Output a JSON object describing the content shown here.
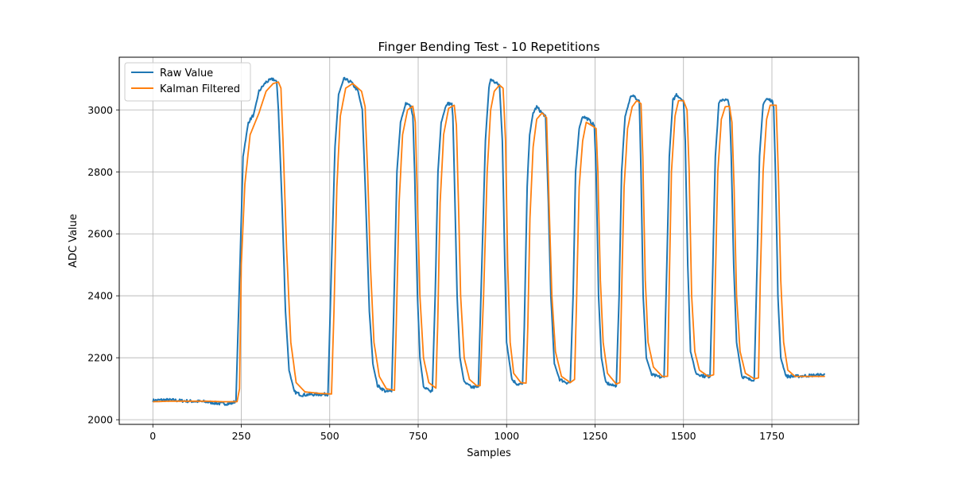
{
  "chart_data": {
    "type": "line",
    "title": "Finger Bending Test - 10 Repetitions",
    "xlabel": "Samples",
    "ylabel": "ADC Value",
    "xlim": [
      -95,
      1995
    ],
    "ylim": [
      1985,
      3170
    ],
    "xticks": [
      0,
      250,
      500,
      750,
      1000,
      1250,
      1500,
      1750
    ],
    "yticks": [
      2000,
      2200,
      2400,
      2600,
      2800,
      3000
    ],
    "grid": true,
    "legend_position": "top-left",
    "series": [
      {
        "name": "Raw Value",
        "color": "#1f77b4",
        "kind": "raw",
        "noise": 5,
        "points": [
          [
            0,
            2062
          ],
          [
            30,
            2064
          ],
          [
            60,
            2063
          ],
          [
            100,
            2060
          ],
          [
            150,
            2058
          ],
          [
            190,
            2052
          ],
          [
            220,
            2052
          ],
          [
            235,
            2060
          ],
          [
            245,
            2450
          ],
          [
            255,
            2850
          ],
          [
            270,
            2960
          ],
          [
            285,
            2985
          ],
          [
            300,
            3060
          ],
          [
            320,
            3090
          ],
          [
            340,
            3100
          ],
          [
            350,
            3090
          ],
          [
            355,
            3000
          ],
          [
            365,
            2700
          ],
          [
            375,
            2350
          ],
          [
            385,
            2160
          ],
          [
            400,
            2090
          ],
          [
            420,
            2080
          ],
          [
            460,
            2082
          ],
          [
            495,
            2082
          ],
          [
            505,
            2500
          ],
          [
            515,
            2880
          ],
          [
            525,
            3050
          ],
          [
            540,
            3100
          ],
          [
            560,
            3090
          ],
          [
            580,
            3060
          ],
          [
            592,
            3000
          ],
          [
            602,
            2700
          ],
          [
            612,
            2350
          ],
          [
            622,
            2180
          ],
          [
            635,
            2110
          ],
          [
            660,
            2090
          ],
          [
            675,
            2092
          ],
          [
            682,
            2400
          ],
          [
            690,
            2800
          ],
          [
            700,
            2960
          ],
          [
            715,
            3020
          ],
          [
            730,
            3010
          ],
          [
            735,
            2980
          ],
          [
            740,
            2800
          ],
          [
            748,
            2400
          ],
          [
            755,
            2200
          ],
          [
            765,
            2110
          ],
          [
            785,
            2090
          ],
          [
            790,
            2092
          ],
          [
            798,
            2400
          ],
          [
            806,
            2800
          ],
          [
            815,
            2960
          ],
          [
            830,
            3020
          ],
          [
            845,
            3020
          ],
          [
            848,
            2980
          ],
          [
            852,
            2800
          ],
          [
            860,
            2400
          ],
          [
            868,
            2200
          ],
          [
            880,
            2120
          ],
          [
            900,
            2105
          ],
          [
            920,
            2105
          ],
          [
            930,
            2500
          ],
          [
            940,
            2900
          ],
          [
            950,
            3070
          ],
          [
            955,
            3100
          ],
          [
            965,
            3090
          ],
          [
            980,
            3080
          ],
          [
            988,
            2900
          ],
          [
            995,
            2500
          ],
          [
            1000,
            2250
          ],
          [
            1015,
            2130
          ],
          [
            1030,
            2115
          ],
          [
            1045,
            2115
          ],
          [
            1050,
            2300
          ],
          [
            1058,
            2750
          ],
          [
            1065,
            2920
          ],
          [
            1075,
            2990
          ],
          [
            1085,
            3010
          ],
          [
            1100,
            2990
          ],
          [
            1110,
            2980
          ],
          [
            1118,
            2700
          ],
          [
            1125,
            2400
          ],
          [
            1135,
            2180
          ],
          [
            1150,
            2130
          ],
          [
            1170,
            2120
          ],
          [
            1180,
            2120
          ],
          [
            1188,
            2400
          ],
          [
            1195,
            2800
          ],
          [
            1205,
            2940
          ],
          [
            1215,
            2980
          ],
          [
            1230,
            2970
          ],
          [
            1248,
            2950
          ],
          [
            1253,
            2800
          ],
          [
            1260,
            2400
          ],
          [
            1268,
            2200
          ],
          [
            1280,
            2120
          ],
          [
            1300,
            2110
          ],
          [
            1310,
            2110
          ],
          [
            1318,
            2400
          ],
          [
            1325,
            2800
          ],
          [
            1335,
            2980
          ],
          [
            1350,
            3040
          ],
          [
            1360,
            3045
          ],
          [
            1375,
            3030
          ],
          [
            1380,
            2800
          ],
          [
            1386,
            2400
          ],
          [
            1395,
            2200
          ],
          [
            1410,
            2145
          ],
          [
            1435,
            2137
          ],
          [
            1445,
            2137
          ],
          [
            1453,
            2500
          ],
          [
            1460,
            2850
          ],
          [
            1470,
            3030
          ],
          [
            1480,
            3050
          ],
          [
            1490,
            3040
          ],
          [
            1500,
            3030
          ],
          [
            1505,
            2900
          ],
          [
            1512,
            2500
          ],
          [
            1520,
            2220
          ],
          [
            1535,
            2150
          ],
          [
            1560,
            2140
          ],
          [
            1575,
            2140
          ],
          [
            1583,
            2500
          ],
          [
            1590,
            2850
          ],
          [
            1600,
            3020
          ],
          [
            1610,
            3035
          ],
          [
            1625,
            3030
          ],
          [
            1630,
            3010
          ],
          [
            1635,
            2850
          ],
          [
            1642,
            2500
          ],
          [
            1650,
            2250
          ],
          [
            1665,
            2140
          ],
          [
            1685,
            2130
          ],
          [
            1700,
            2130
          ],
          [
            1708,
            2500
          ],
          [
            1715,
            2850
          ],
          [
            1725,
            3020
          ],
          [
            1735,
            3035
          ],
          [
            1750,
            3030
          ],
          [
            1755,
            3010
          ],
          [
            1760,
            2800
          ],
          [
            1767,
            2400
          ],
          [
            1775,
            2200
          ],
          [
            1790,
            2140
          ],
          [
            1820,
            2140
          ],
          [
            1860,
            2143
          ],
          [
            1900,
            2145
          ]
        ]
      },
      {
        "name": "Kalman Filtered",
        "color": "#ff7f0e",
        "kind": "filtered",
        "noise": 0,
        "points": [
          [
            0,
            2058
          ],
          [
            50,
            2060
          ],
          [
            100,
            2060
          ],
          [
            150,
            2060
          ],
          [
            200,
            2058
          ],
          [
            238,
            2058
          ],
          [
            245,
            2100
          ],
          [
            250,
            2500
          ],
          [
            260,
            2760
          ],
          [
            275,
            2920
          ],
          [
            300,
            2990
          ],
          [
            320,
            3060
          ],
          [
            340,
            3085
          ],
          [
            355,
            3090
          ],
          [
            362,
            3070
          ],
          [
            368,
            2900
          ],
          [
            378,
            2550
          ],
          [
            390,
            2250
          ],
          [
            405,
            2120
          ],
          [
            430,
            2090
          ],
          [
            470,
            2085
          ],
          [
            505,
            2083
          ],
          [
            512,
            2350
          ],
          [
            520,
            2750
          ],
          [
            530,
            2980
          ],
          [
            545,
            3070
          ],
          [
            565,
            3085
          ],
          [
            590,
            3060
          ],
          [
            600,
            3010
          ],
          [
            607,
            2800
          ],
          [
            615,
            2500
          ],
          [
            625,
            2250
          ],
          [
            640,
            2140
          ],
          [
            660,
            2100
          ],
          [
            683,
            2095
          ],
          [
            688,
            2300
          ],
          [
            696,
            2700
          ],
          [
            706,
            2920
          ],
          [
            720,
            3000
          ],
          [
            735,
            3012
          ],
          [
            742,
            2960
          ],
          [
            748,
            2700
          ],
          [
            755,
            2400
          ],
          [
            765,
            2200
          ],
          [
            780,
            2120
          ],
          [
            800,
            2102
          ],
          [
            805,
            2300
          ],
          [
            812,
            2700
          ],
          [
            822,
            2920
          ],
          [
            836,
            3005
          ],
          [
            852,
            3015
          ],
          [
            858,
            2950
          ],
          [
            864,
            2700
          ],
          [
            870,
            2400
          ],
          [
            880,
            2200
          ],
          [
            895,
            2130
          ],
          [
            915,
            2110
          ],
          [
            925,
            2110
          ],
          [
            935,
            2400
          ],
          [
            945,
            2800
          ],
          [
            955,
            3000
          ],
          [
            965,
            3060
          ],
          [
            980,
            3080
          ],
          [
            990,
            3070
          ],
          [
            997,
            2900
          ],
          [
            1003,
            2500
          ],
          [
            1010,
            2250
          ],
          [
            1020,
            2150
          ],
          [
            1040,
            2120
          ],
          [
            1055,
            2118
          ],
          [
            1060,
            2300
          ],
          [
            1066,
            2650
          ],
          [
            1075,
            2880
          ],
          [
            1085,
            2970
          ],
          [
            1100,
            2990
          ],
          [
            1113,
            2975
          ],
          [
            1120,
            2700
          ],
          [
            1128,
            2400
          ],
          [
            1138,
            2220
          ],
          [
            1155,
            2140
          ],
          [
            1180,
            2120
          ],
          [
            1192,
            2130
          ],
          [
            1198,
            2400
          ],
          [
            1205,
            2750
          ],
          [
            1215,
            2900
          ],
          [
            1225,
            2960
          ],
          [
            1240,
            2950
          ],
          [
            1253,
            2940
          ],
          [
            1258,
            2800
          ],
          [
            1265,
            2450
          ],
          [
            1273,
            2250
          ],
          [
            1285,
            2150
          ],
          [
            1310,
            2115
          ],
          [
            1320,
            2120
          ],
          [
            1325,
            2400
          ],
          [
            1332,
            2750
          ],
          [
            1342,
            2940
          ],
          [
            1355,
            3010
          ],
          [
            1368,
            3030
          ],
          [
            1380,
            3020
          ],
          [
            1385,
            2850
          ],
          [
            1392,
            2450
          ],
          [
            1400,
            2250
          ],
          [
            1415,
            2170
          ],
          [
            1440,
            2140
          ],
          [
            1455,
            2140
          ],
          [
            1460,
            2450
          ],
          [
            1466,
            2800
          ],
          [
            1476,
            2980
          ],
          [
            1486,
            3030
          ],
          [
            1500,
            3030
          ],
          [
            1510,
            3000
          ],
          [
            1516,
            2800
          ],
          [
            1523,
            2400
          ],
          [
            1532,
            2220
          ],
          [
            1545,
            2160
          ],
          [
            1570,
            2140
          ],
          [
            1585,
            2145
          ],
          [
            1590,
            2450
          ],
          [
            1597,
            2800
          ],
          [
            1607,
            2970
          ],
          [
            1618,
            3010
          ],
          [
            1630,
            3012
          ],
          [
            1637,
            2960
          ],
          [
            1643,
            2750
          ],
          [
            1650,
            2400
          ],
          [
            1660,
            2220
          ],
          [
            1675,
            2150
          ],
          [
            1700,
            2132
          ],
          [
            1712,
            2135
          ],
          [
            1717,
            2450
          ],
          [
            1725,
            2800
          ],
          [
            1735,
            2970
          ],
          [
            1745,
            3015
          ],
          [
            1762,
            3015
          ],
          [
            1768,
            2800
          ],
          [
            1775,
            2450
          ],
          [
            1783,
            2250
          ],
          [
            1795,
            2160
          ],
          [
            1815,
            2140
          ],
          [
            1860,
            2140
          ],
          [
            1900,
            2140
          ]
        ]
      }
    ]
  }
}
